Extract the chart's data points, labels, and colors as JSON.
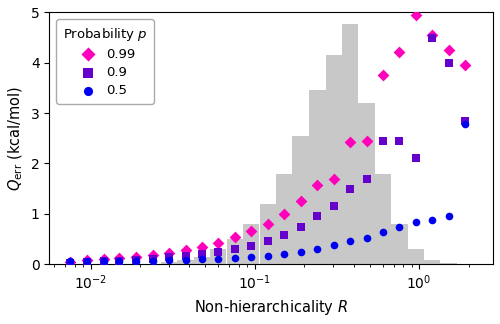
{
  "title": "",
  "xlabel": "Non-hierarchicality $R$",
  "ylabel": "$Q_{\\mathrm{err}}$ (kcal/mol)",
  "ylim": [
    0,
    5
  ],
  "yticks": [
    0,
    1,
    2,
    3,
    4,
    5
  ],
  "background_color": "#ffffff",
  "legend_title": "Probability $p$",
  "series": {
    "p099": {
      "label": "0.99",
      "color": "#ff00bb",
      "marker": "D",
      "markersize": 6,
      "x": [
        0.0075,
        0.0095,
        0.012,
        0.015,
        0.019,
        0.024,
        0.03,
        0.038,
        0.048,
        0.06,
        0.076,
        0.095,
        0.12,
        0.151,
        0.19,
        0.24,
        0.302,
        0.38,
        0.479,
        0.603,
        0.759,
        0.956,
        1.202,
        1.514,
        1.905
      ],
      "y": [
        0.05,
        0.08,
        0.1,
        0.12,
        0.15,
        0.18,
        0.22,
        0.28,
        0.35,
        0.43,
        0.53,
        0.65,
        0.8,
        1.0,
        1.25,
        1.58,
        1.7,
        2.42,
        2.45,
        3.75,
        4.22,
        4.95,
        4.55,
        4.25,
        3.95
      ]
    },
    "p09": {
      "label": "0.9",
      "color": "#6600cc",
      "marker": "s",
      "markersize": 5.5,
      "x": [
        0.0075,
        0.0095,
        0.012,
        0.015,
        0.019,
        0.024,
        0.03,
        0.038,
        0.048,
        0.06,
        0.076,
        0.095,
        0.12,
        0.151,
        0.19,
        0.24,
        0.302,
        0.38,
        0.479,
        0.603,
        0.759,
        0.956,
        1.202,
        1.514,
        1.905
      ],
      "y": [
        0.03,
        0.04,
        0.06,
        0.07,
        0.09,
        0.11,
        0.14,
        0.17,
        0.21,
        0.25,
        0.3,
        0.37,
        0.46,
        0.58,
        0.73,
        0.95,
        1.15,
        1.5,
        1.7,
        2.45,
        2.45,
        2.1,
        4.5,
        4.0,
        2.85
      ]
    },
    "p05": {
      "label": "0.5",
      "color": "#0000ee",
      "marker": "o",
      "markersize": 5.5,
      "x": [
        0.0075,
        0.0095,
        0.012,
        0.015,
        0.019,
        0.024,
        0.03,
        0.038,
        0.048,
        0.06,
        0.076,
        0.095,
        0.12,
        0.151,
        0.19,
        0.24,
        0.302,
        0.38,
        0.479,
        0.603,
        0.759,
        0.956,
        1.202,
        1.514,
        1.905
      ],
      "y": [
        0.07,
        0.06,
        0.06,
        0.06,
        0.07,
        0.07,
        0.08,
        0.09,
        0.1,
        0.11,
        0.12,
        0.14,
        0.17,
        0.2,
        0.25,
        0.31,
        0.38,
        0.46,
        0.52,
        0.63,
        0.73,
        0.83,
        0.88,
        0.96,
        2.78
      ]
    }
  },
  "histogram": {
    "color": "#c8c8c8",
    "alpha": 1.0,
    "bin_centers": [
      0.03,
      0.038,
      0.048,
      0.06,
      0.076,
      0.095,
      0.12,
      0.151,
      0.19,
      0.24,
      0.302,
      0.38,
      0.479,
      0.603,
      0.759,
      0.956,
      1.202,
      1.514
    ],
    "heights_norm": [
      0.05,
      0.08,
      0.15,
      0.3,
      0.5,
      0.8,
      1.2,
      1.8,
      2.55,
      3.45,
      4.15,
      4.78,
      3.2,
      1.8,
      0.8,
      0.3,
      0.08,
      0.03
    ]
  }
}
